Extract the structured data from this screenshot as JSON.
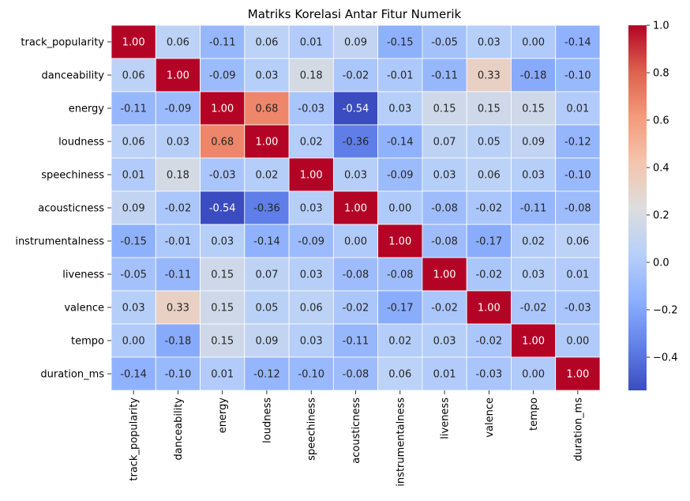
{
  "chart_data": {
    "type": "heatmap",
    "title": "Matriks Korelasi Antar Fitur Numerik",
    "xlabel": "",
    "ylabel": "",
    "x_categories": [
      "track_popularity",
      "danceability",
      "energy",
      "loudness",
      "speechiness",
      "acousticness",
      "instrumentalness",
      "liveness",
      "valence",
      "tempo",
      "duration_ms"
    ],
    "y_categories": [
      "track_popularity",
      "danceability",
      "energy",
      "loudness",
      "speechiness",
      "acousticness",
      "instrumentalness",
      "liveness",
      "valence",
      "tempo",
      "duration_ms"
    ],
    "values": [
      [
        1.0,
        0.06,
        -0.11,
        0.06,
        0.01,
        0.09,
        -0.15,
        -0.05,
        0.03,
        -0.0,
        -0.14
      ],
      [
        0.06,
        1.0,
        -0.09,
        0.03,
        0.18,
        -0.02,
        -0.01,
        -0.11,
        0.33,
        -0.18,
        -0.1
      ],
      [
        -0.11,
        -0.09,
        1.0,
        0.68,
        -0.03,
        -0.54,
        0.03,
        0.15,
        0.15,
        0.15,
        0.01
      ],
      [
        0.06,
        0.03,
        0.68,
        1.0,
        0.02,
        -0.36,
        -0.14,
        0.07,
        0.05,
        0.09,
        -0.12
      ],
      [
        0.01,
        0.18,
        -0.03,
        0.02,
        1.0,
        0.03,
        -0.09,
        0.03,
        0.06,
        0.03,
        -0.1
      ],
      [
        0.09,
        -0.02,
        -0.54,
        -0.36,
        0.03,
        1.0,
        -0.0,
        -0.08,
        -0.02,
        -0.11,
        -0.08
      ],
      [
        -0.15,
        -0.01,
        0.03,
        -0.14,
        -0.09,
        -0.0,
        1.0,
        -0.08,
        -0.17,
        0.02,
        0.06
      ],
      [
        -0.05,
        -0.11,
        0.15,
        0.07,
        0.03,
        -0.08,
        -0.08,
        1.0,
        -0.02,
        0.03,
        0.01
      ],
      [
        0.03,
        0.33,
        0.15,
        0.05,
        0.06,
        -0.02,
        -0.17,
        -0.02,
        1.0,
        -0.02,
        -0.03
      ],
      [
        -0.0,
        -0.18,
        0.15,
        0.09,
        0.03,
        -0.11,
        0.02,
        0.03,
        -0.02,
        1.0,
        0.0
      ],
      [
        -0.14,
        -0.1,
        0.01,
        -0.12,
        -0.1,
        -0.08,
        0.06,
        0.01,
        -0.03,
        0.0,
        1.0
      ]
    ],
    "colormap": "coolwarm",
    "vmin": -0.54,
    "vmax": 1.0,
    "colorbar_ticks": [
      "1.0",
      "0.8",
      "0.6",
      "0.4",
      "0.2",
      "0.0",
      "−0.2",
      "−0.4"
    ],
    "colorbar_tick_values": [
      1.0,
      0.8,
      0.6,
      0.4,
      0.2,
      0.0,
      -0.2,
      -0.4
    ],
    "annotations": true,
    "annotation_format": "2 decimals",
    "cell_border_color": "#ffffff",
    "grid": false,
    "legend": "colorbar-right"
  }
}
